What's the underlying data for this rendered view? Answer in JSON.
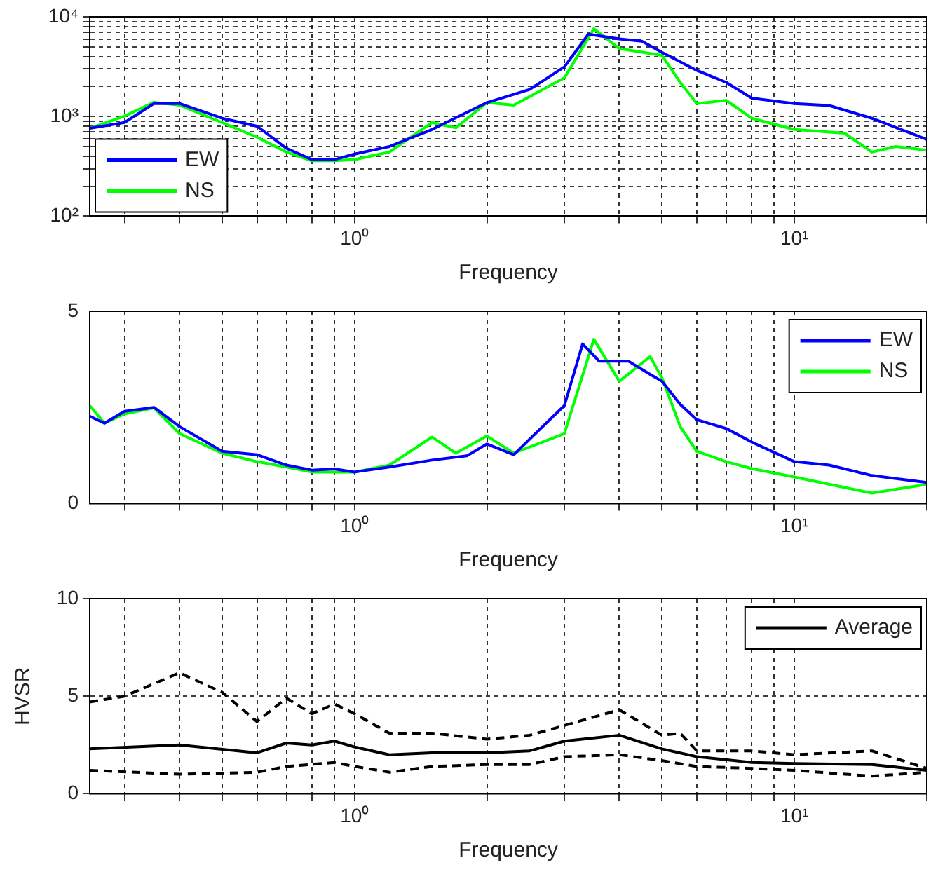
{
  "chart_data": [
    {
      "type": "line",
      "xlabel": "Frequency",
      "log": "xy",
      "grid": true,
      "legend": "bottom left",
      "xlim": [
        0.25,
        20
      ],
      "xticks": [
        {
          "value": 0.3,
          "label": null
        },
        {
          "value": 0.4,
          "label": null
        },
        {
          "value": 0.5,
          "label": null
        },
        {
          "value": 0.6,
          "label": null
        },
        {
          "value": 0.7,
          "label": null
        },
        {
          "value": 0.8,
          "label": null
        },
        {
          "value": 0.9,
          "label": null
        },
        {
          "value": 1,
          "label": "10⁰"
        },
        {
          "value": 2,
          "label": null
        },
        {
          "value": 3,
          "label": null
        },
        {
          "value": 4,
          "label": null
        },
        {
          "value": 5,
          "label": null
        },
        {
          "value": 6,
          "label": null
        },
        {
          "value": 7,
          "label": null
        },
        {
          "value": 8,
          "label": null
        },
        {
          "value": 9,
          "label": null
        },
        {
          "value": 10,
          "label": "10¹"
        },
        {
          "value": 20,
          "label": null
        }
      ],
      "ylim": [
        100,
        10000
      ],
      "yticks": [
        {
          "value": 100,
          "label": "10²"
        },
        {
          "value": 200,
          "label": null
        },
        {
          "value": 300,
          "label": null
        },
        {
          "value": 400,
          "label": null
        },
        {
          "value": 500,
          "label": null
        },
        {
          "value": 600,
          "label": null
        },
        {
          "value": 700,
          "label": null
        },
        {
          "value": 800,
          "label": null
        },
        {
          "value": 900,
          "label": null
        },
        {
          "value": 1000,
          "label": "10³"
        },
        {
          "value": 2000,
          "label": null
        },
        {
          "value": 3000,
          "label": null
        },
        {
          "value": 4000,
          "label": null
        },
        {
          "value": 5000,
          "label": null
        },
        {
          "value": 6000,
          "label": null
        },
        {
          "value": 7000,
          "label": null
        },
        {
          "value": 8000,
          "label": null
        },
        {
          "value": 9000,
          "label": null
        },
        {
          "value": 10000,
          "label": "10⁴"
        }
      ],
      "series": [
        {
          "name": "EW",
          "color": "#0000ff",
          "x": [
            0.25,
            0.3,
            0.35,
            0.4,
            0.5,
            0.6,
            0.7,
            0.8,
            0.9,
            1.0,
            1.2,
            1.5,
            2.0,
            2.5,
            3.0,
            3.4,
            4.0,
            4.5,
            5.0,
            6.0,
            7.0,
            8.0,
            10,
            12,
            15,
            20
          ],
          "values": [
            760,
            870,
            1350,
            1350,
            960,
            800,
            480,
            370,
            370,
            420,
            500,
            740,
            1380,
            1870,
            3150,
            6700,
            6000,
            5700,
            4400,
            2900,
            2200,
            1530,
            1350,
            1290,
            960,
            590
          ]
        },
        {
          "name": "NS",
          "color": "#00ff00",
          "x": [
            0.25,
            0.3,
            0.35,
            0.4,
            0.5,
            0.6,
            0.7,
            0.8,
            0.9,
            1.0,
            1.2,
            1.5,
            1.7,
            2.0,
            2.3,
            3.0,
            3.5,
            4.0,
            5.0,
            5.5,
            6.0,
            7.0,
            8.0,
            10,
            13,
            15,
            17,
            20
          ],
          "values": [
            760,
            1010,
            1390,
            1300,
            870,
            620,
            440,
            360,
            360,
            370,
            440,
            870,
            770,
            1380,
            1300,
            2440,
            7600,
            4800,
            4100,
            2200,
            1350,
            1450,
            960,
            740,
            680,
            440,
            500,
            460
          ]
        }
      ]
    },
    {
      "type": "line",
      "xlabel": "Frequency",
      "log": "x",
      "grid": "x",
      "legend": "top right",
      "xlim": [
        0.25,
        20
      ],
      "xticks": [
        {
          "value": 0.3,
          "label": null
        },
        {
          "value": 0.4,
          "label": null
        },
        {
          "value": 0.5,
          "label": null
        },
        {
          "value": 0.6,
          "label": null
        },
        {
          "value": 0.7,
          "label": null
        },
        {
          "value": 0.8,
          "label": null
        },
        {
          "value": 0.9,
          "label": null
        },
        {
          "value": 1,
          "label": "10⁰"
        },
        {
          "value": 2,
          "label": null
        },
        {
          "value": 3,
          "label": null
        },
        {
          "value": 4,
          "label": null
        },
        {
          "value": 5,
          "label": null
        },
        {
          "value": 6,
          "label": null
        },
        {
          "value": 7,
          "label": null
        },
        {
          "value": 8,
          "label": null
        },
        {
          "value": 9,
          "label": null
        },
        {
          "value": 10,
          "label": "10¹"
        },
        {
          "value": 20,
          "label": null
        }
      ],
      "ylim": [
        0,
        5
      ],
      "yticks": [
        0,
        5
      ],
      "series": [
        {
          "name": "EW",
          "color": "#0000ff",
          "x": [
            0.25,
            0.27,
            0.3,
            0.35,
            0.4,
            0.5,
            0.6,
            0.7,
            0.8,
            0.9,
            1.0,
            1.2,
            1.5,
            1.8,
            2.0,
            2.3,
            3.0,
            3.3,
            3.6,
            4.2,
            4.7,
            5.0,
            5.5,
            6.0,
            7.0,
            8.0,
            10,
            12,
            15,
            20
          ],
          "values": [
            2.27,
            2.09,
            2.4,
            2.5,
            2.0,
            1.36,
            1.27,
            1.0,
            0.87,
            0.9,
            0.82,
            0.95,
            1.13,
            1.24,
            1.55,
            1.27,
            2.55,
            4.15,
            3.7,
            3.7,
            3.36,
            3.18,
            2.58,
            2.18,
            1.95,
            1.6,
            1.09,
            1.0,
            0.73,
            0.55
          ]
        },
        {
          "name": "NS",
          "color": "#00ff00",
          "x": [
            0.25,
            0.27,
            0.3,
            0.35,
            0.4,
            0.5,
            0.6,
            0.7,
            0.8,
            1.0,
            1.2,
            1.5,
            1.7,
            2.0,
            2.3,
            3.0,
            3.5,
            4.0,
            4.7,
            5.0,
            5.5,
            6.0,
            7.0,
            8.0,
            10,
            15,
            20
          ],
          "values": [
            2.55,
            2.09,
            2.33,
            2.49,
            1.82,
            1.31,
            1.09,
            0.95,
            0.82,
            0.82,
            1.0,
            1.73,
            1.31,
            1.76,
            1.31,
            1.82,
            4.27,
            3.18,
            3.82,
            3.27,
            2.0,
            1.36,
            1.09,
            0.91,
            0.69,
            0.27,
            0.5
          ]
        }
      ]
    },
    {
      "type": "line",
      "xlabel": "Frequency",
      "ylabel": "HVSR",
      "log": "x",
      "grid": true,
      "legend": "top right",
      "xlim": [
        0.25,
        20
      ],
      "xticks": [
        {
          "value": 0.3,
          "label": null
        },
        {
          "value": 0.4,
          "label": null
        },
        {
          "value": 0.5,
          "label": null
        },
        {
          "value": 0.6,
          "label": null
        },
        {
          "value": 0.7,
          "label": null
        },
        {
          "value": 0.8,
          "label": null
        },
        {
          "value": 0.9,
          "label": null
        },
        {
          "value": 1,
          "label": "10⁰"
        },
        {
          "value": 2,
          "label": null
        },
        {
          "value": 3,
          "label": null
        },
        {
          "value": 4,
          "label": null
        },
        {
          "value": 5,
          "label": null
        },
        {
          "value": 6,
          "label": null
        },
        {
          "value": 7,
          "label": null
        },
        {
          "value": 8,
          "label": null
        },
        {
          "value": 9,
          "label": null
        },
        {
          "value": 10,
          "label": "10¹"
        },
        {
          "value": 20,
          "label": null
        }
      ],
      "ylim": [
        0,
        10
      ],
      "yticks": [
        0,
        5,
        10
      ],
      "series": [
        {
          "name": "Average",
          "color": "#000000",
          "line_style": "solid",
          "x": [
            0.25,
            0.4,
            0.6,
            0.7,
            0.8,
            0.9,
            1.0,
            1.2,
            1.5,
            2.0,
            2.5,
            3.0,
            4.0,
            5.0,
            6.0,
            8.0,
            10,
            15,
            20
          ],
          "values": [
            2.3,
            2.5,
            2.1,
            2.6,
            2.5,
            2.7,
            2.4,
            2.0,
            2.1,
            2.1,
            2.2,
            2.7,
            3.0,
            2.3,
            1.9,
            1.6,
            1.55,
            1.5,
            1.2
          ]
        },
        {
          "color": "#000000",
          "line_style": "dashed",
          "x": [
            0.25,
            0.3,
            0.4,
            0.5,
            0.6,
            0.7,
            0.8,
            0.9,
            1.0,
            1.2,
            1.5,
            2.0,
            2.5,
            3.0,
            4.0,
            5.0,
            5.5,
            6.0,
            8.0,
            10,
            15,
            20
          ],
          "values": [
            4.7,
            5.0,
            6.2,
            5.2,
            3.7,
            4.9,
            4.1,
            4.6,
            4.1,
            3.1,
            3.1,
            2.8,
            3.0,
            3.5,
            4.3,
            3.0,
            3.1,
            2.2,
            2.2,
            2.0,
            2.2,
            1.3
          ]
        },
        {
          "color": "#000000",
          "line_style": "dashed",
          "x": [
            0.25,
            0.4,
            0.6,
            0.7,
            0.9,
            1.0,
            1.2,
            1.5,
            2.0,
            2.5,
            3.0,
            4.0,
            5.0,
            6.0,
            8.0,
            10,
            15,
            20
          ],
          "values": [
            1.2,
            1.0,
            1.1,
            1.4,
            1.6,
            1.4,
            1.1,
            1.4,
            1.5,
            1.5,
            1.9,
            2.0,
            1.7,
            1.4,
            1.3,
            1.2,
            0.9,
            1.1
          ]
        }
      ]
    }
  ]
}
